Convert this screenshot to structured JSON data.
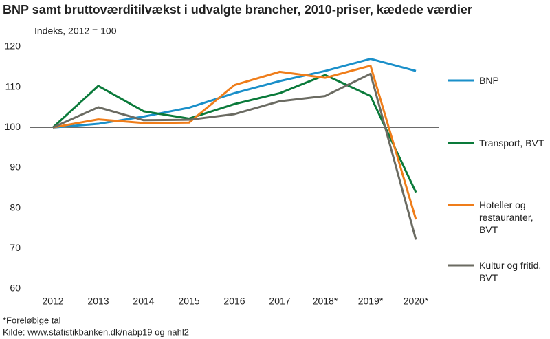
{
  "chart_data": {
    "type": "line",
    "title": "BNP samt bruttoværditilvækst i udvalgte brancher, 2010-priser, kædede værdier",
    "y_axis_label": "Indeks, 2012 = 100",
    "categories": [
      "2012",
      "2013",
      "2014",
      "2015",
      "2016",
      "2017",
      "2018*",
      "2019*",
      "2020*"
    ],
    "series": [
      {
        "name": "BNP",
        "color": "#1a8fc9",
        "values": [
          100,
          100.9,
          102.7,
          104.9,
          108.5,
          111.5,
          114,
          117,
          114
        ]
      },
      {
        "name": "Transport, BVT",
        "color": "#0a7a3a",
        "values": [
          100,
          110.3,
          104,
          102.2,
          105.8,
          108.5,
          113,
          107.8,
          83.9
        ]
      },
      {
        "name": "Hoteller og restauranter, BVT",
        "color": "#ef7d1a",
        "values": [
          100,
          102,
          101.1,
          101.2,
          110.5,
          113.8,
          112.3,
          115.3,
          77.2
        ]
      },
      {
        "name": "Kultur og fritid, BVT",
        "color": "#6b6b62",
        "values": [
          100,
          105,
          101.8,
          101.9,
          103.3,
          106.5,
          107.8,
          113.3,
          72.2
        ]
      }
    ],
    "ylim": [
      60,
      120
    ],
    "yticks": [
      60,
      70,
      80,
      90,
      100,
      110,
      120
    ],
    "reference_line": 100,
    "legend": "right"
  },
  "notes": [
    "*Foreløbige tal",
    "Kilde: www.statistikbanken.dk/nabp19 og nahl2"
  ]
}
